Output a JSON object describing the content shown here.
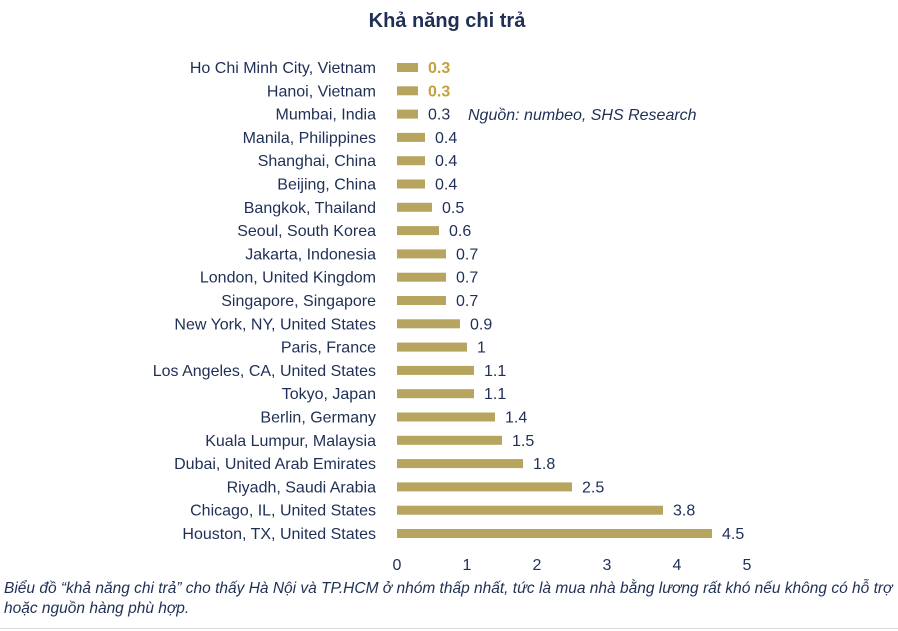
{
  "chart_data": {
    "type": "bar",
    "orientation": "horizontal",
    "title": "Khả năng chi trả",
    "source_note": "Nguồn: numbeo, SHS Research",
    "bar_color": "#b7a45f",
    "highlight_color": "#c4a13c",
    "xlim": [
      0,
      5
    ],
    "xticks": [
      "0",
      "1",
      "2",
      "3",
      "4",
      "5"
    ],
    "grid": false,
    "legend": "none",
    "categories": [
      "Ho Chi Minh City, Vietnam",
      "Hanoi, Vietnam",
      "Mumbai, India",
      "Manila, Philippines",
      "Shanghai, China",
      "Beijing, China",
      "Bangkok, Thailand",
      "Seoul, South Korea",
      "Jakarta, Indonesia",
      "London, United Kingdom",
      "Singapore, Singapore",
      "New York, NY, United States",
      "Paris, France",
      "Los Angeles, CA, United States",
      "Tokyo, Japan",
      "Berlin, Germany",
      "Kuala Lumpur, Malaysia",
      "Dubai, United Arab Emirates",
      "Riyadh, Saudi Arabia",
      "Chicago, IL, United States",
      "Houston, TX, United States"
    ],
    "values": [
      0.3,
      0.3,
      0.3,
      0.4,
      0.4,
      0.4,
      0.5,
      0.6,
      0.7,
      0.7,
      0.7,
      0.9,
      1,
      1.1,
      1.1,
      1.4,
      1.5,
      1.8,
      2.5,
      3.8,
      4.5
    ],
    "value_labels": [
      "0.3",
      "0.3",
      "0.3",
      "0.4",
      "0.4",
      "0.4",
      "0.5",
      "0.6",
      "0.7",
      "0.7",
      "0.7",
      "0.9",
      "1",
      "1.1",
      "1.1",
      "1.4",
      "1.5",
      "1.8",
      "2.5",
      "3.8",
      "4.5"
    ],
    "highlighted_labels": [
      true,
      true,
      false,
      false,
      false,
      false,
      false,
      false,
      false,
      false,
      false,
      false,
      false,
      false,
      false,
      false,
      false,
      false,
      false,
      false,
      false
    ]
  },
  "caption": "Biểu đồ “khả năng chi trả” cho thấy Hà Nội và TP.HCM ở nhóm thấp nhất, tức là mua nhà bằng lương rất khó nếu không có hỗ trợ hoặc nguồn hàng phù hợp."
}
